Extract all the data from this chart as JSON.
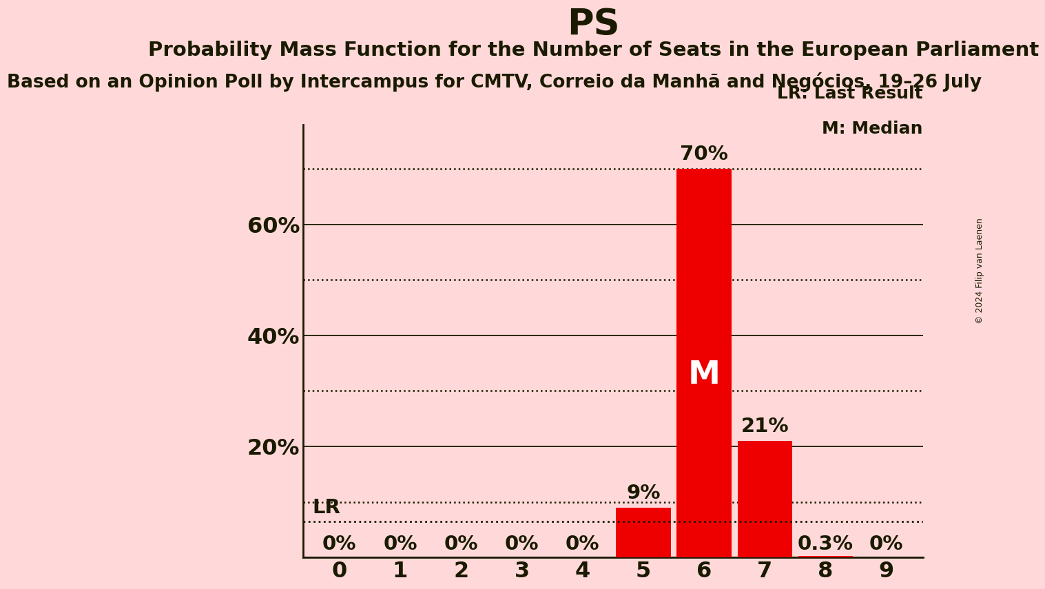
{
  "title": "PS",
  "subtitle1": "Probability Mass Function for the Number of Seats in the European Parliament",
  "subtitle2": "Based on an Opinion Poll by Intercampus for CMTV, Correio da Manhã and Negócios, 19–26 July",
  "copyright": "© 2024 Filip van Laenen",
  "categories": [
    0,
    1,
    2,
    3,
    4,
    5,
    6,
    7,
    8,
    9
  ],
  "values": [
    0.0,
    0.0,
    0.0,
    0.0,
    0.0,
    0.09,
    0.7,
    0.21,
    0.003,
    0.0
  ],
  "bar_color": "#ee0000",
  "background_color": "#ffd9d9",
  "text_color": "#1a1a00",
  "bar_labels": [
    "0%",
    "0%",
    "0%",
    "0%",
    "0%",
    "9%",
    "70%",
    "21%",
    "0.3%",
    "0%"
  ],
  "yticks_solid": [
    0.0,
    0.2,
    0.4,
    0.6
  ],
  "ytick_labels": [
    "",
    "20%",
    "40%",
    "60%"
  ],
  "yticks_dotted": [
    0.1,
    0.3,
    0.5,
    0.7
  ],
  "ylim": [
    0,
    0.78
  ],
  "lr_value": 0.065,
  "lr_label": "LR",
  "median_seat": 6,
  "median_label": "M",
  "legend_lr": "LR: Last Result",
  "legend_m": "M: Median",
  "title_fontsize": 38,
  "subtitle1_fontsize": 21,
  "subtitle2_fontsize": 19,
  "bar_label_fontsize": 21,
  "tick_label_fontsize": 23,
  "legend_fontsize": 18,
  "median_fontsize": 34,
  "lr_fontsize": 21,
  "copyright_fontsize": 9
}
